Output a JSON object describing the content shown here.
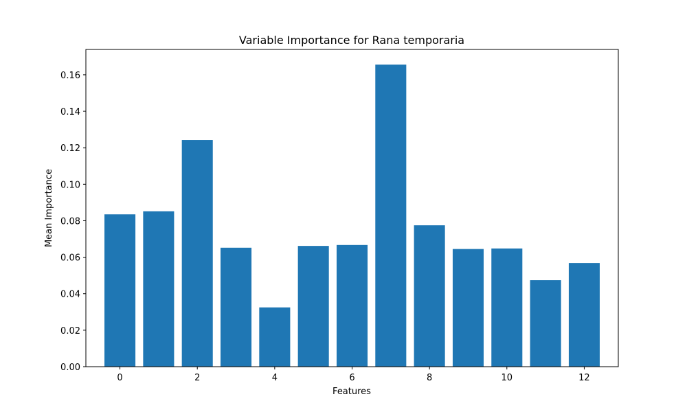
{
  "chart_data": {
    "type": "bar",
    "title": "Variable Importance for Rana temporaria",
    "xlabel": "Features",
    "ylabel": "Mean Importance",
    "categories": [
      0,
      1,
      2,
      3,
      4,
      5,
      6,
      7,
      8,
      9,
      10,
      11,
      12
    ],
    "values": [
      0.0835,
      0.0852,
      0.1242,
      0.0652,
      0.0325,
      0.0662,
      0.0667,
      0.1656,
      0.0775,
      0.0645,
      0.0648,
      0.0474,
      0.0568
    ],
    "xlim": [
      -0.88,
      12.88
    ],
    "ylim": [
      0,
      0.1739
    ],
    "xticks": [
      0,
      2,
      4,
      6,
      8,
      10,
      12
    ],
    "yticks": [
      0.0,
      0.02,
      0.04,
      0.06,
      0.08,
      0.1,
      0.12,
      0.14,
      0.16
    ],
    "ytick_labels": [
      "0.00",
      "0.02",
      "0.04",
      "0.06",
      "0.08",
      "0.10",
      "0.12",
      "0.14",
      "0.16"
    ],
    "bar_color": "#1f77b4",
    "grid": false,
    "legend": "none"
  }
}
